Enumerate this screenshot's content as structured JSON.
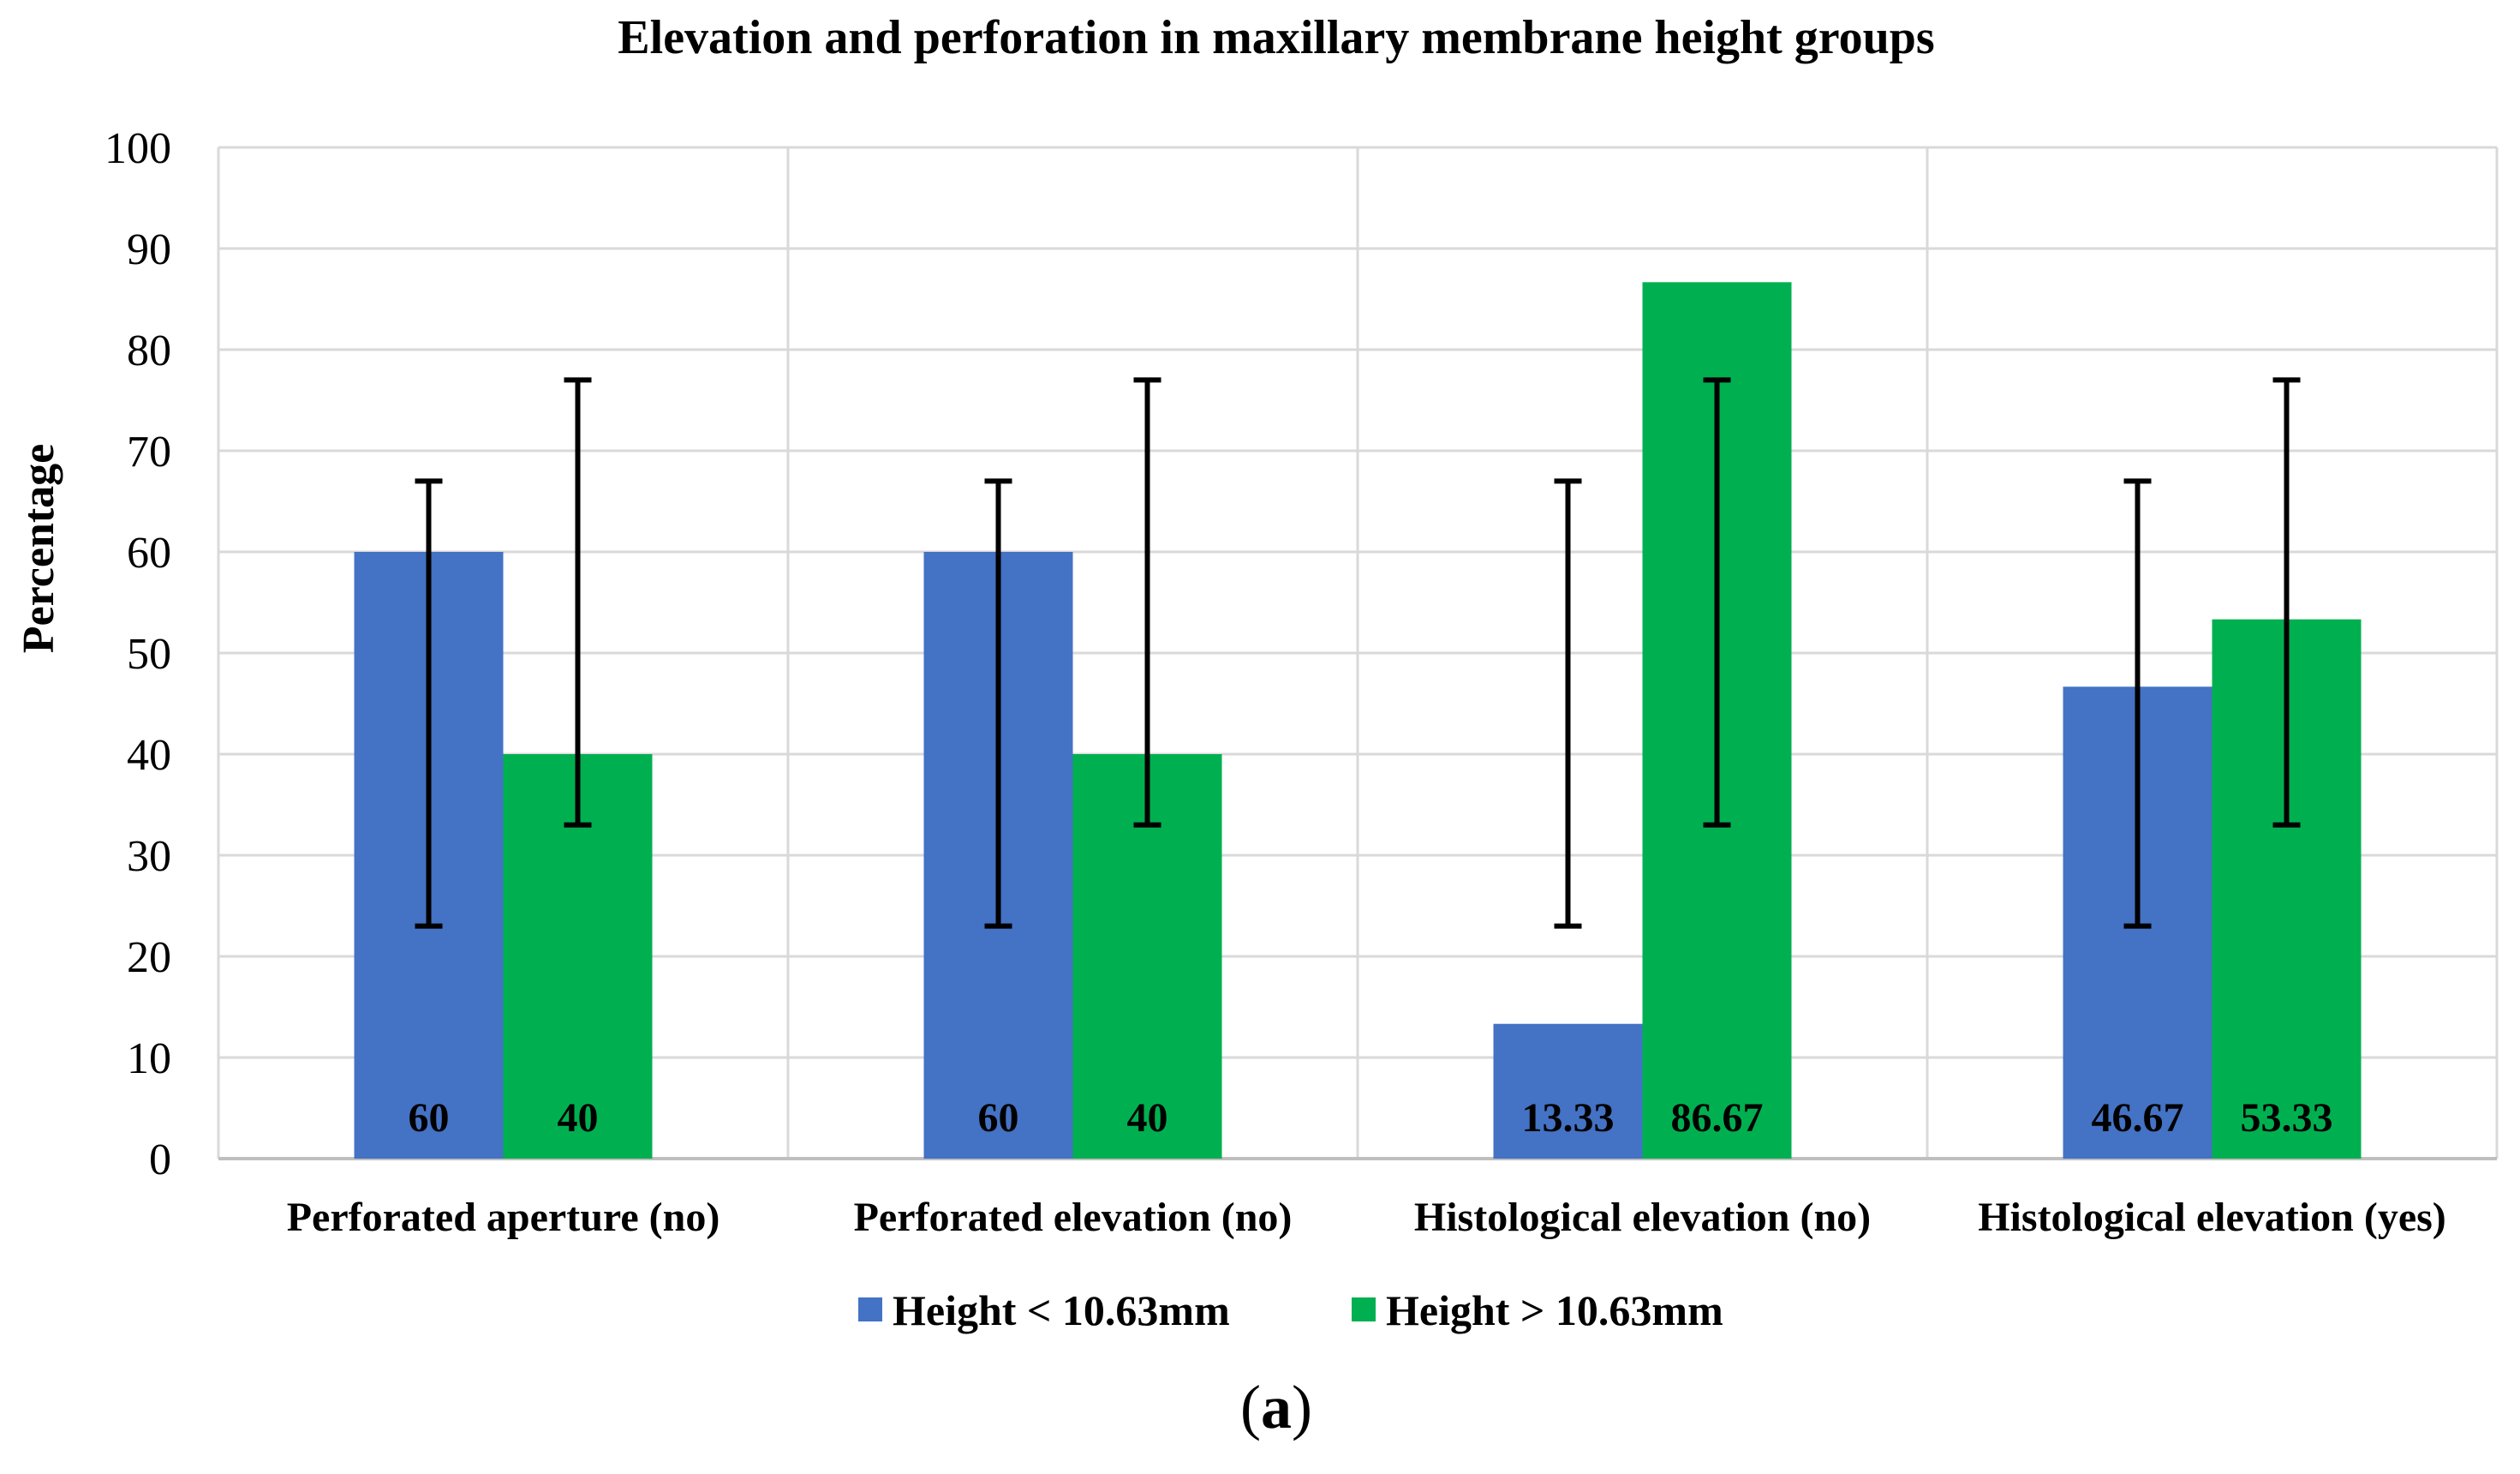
{
  "chart_data": {
    "type": "bar",
    "title": "Elevation and perforation in maxillary membrane height groups",
    "xlabel": "",
    "ylabel": "Percentage",
    "ylim": [
      0,
      100
    ],
    "yticks": [
      "0",
      "10",
      "20",
      "30",
      "40",
      "50",
      "60",
      "70",
      "80",
      "90",
      "100"
    ],
    "grid": true,
    "legend_position": "bottom",
    "categories": [
      "Perforated aperture (no)",
      "Perforated elevation (no)",
      "Histological elevation (no)",
      "Histological elevation (yes)"
    ],
    "series": [
      {
        "name": "Height < 10.63mm",
        "color": "#4472C4",
        "values": [
          60,
          60,
          13.33,
          46.67
        ],
        "labels": [
          "60",
          "60",
          "13.33",
          "46.67"
        ],
        "error_low": [
          23,
          23,
          23,
          23
        ],
        "error_high": [
          67,
          67,
          67,
          67
        ]
      },
      {
        "name": "Height > 10.63mm",
        "color": "#00B050",
        "values": [
          40,
          40,
          86.67,
          53.33
        ],
        "labels": [
          "40",
          "40",
          "86.67",
          "53.33"
        ],
        "error_low": [
          33,
          33,
          33,
          33
        ],
        "error_high": [
          77,
          77,
          77,
          77
        ]
      }
    ]
  },
  "caption": {
    "open": "(",
    "letter": "a",
    "close": ")"
  }
}
